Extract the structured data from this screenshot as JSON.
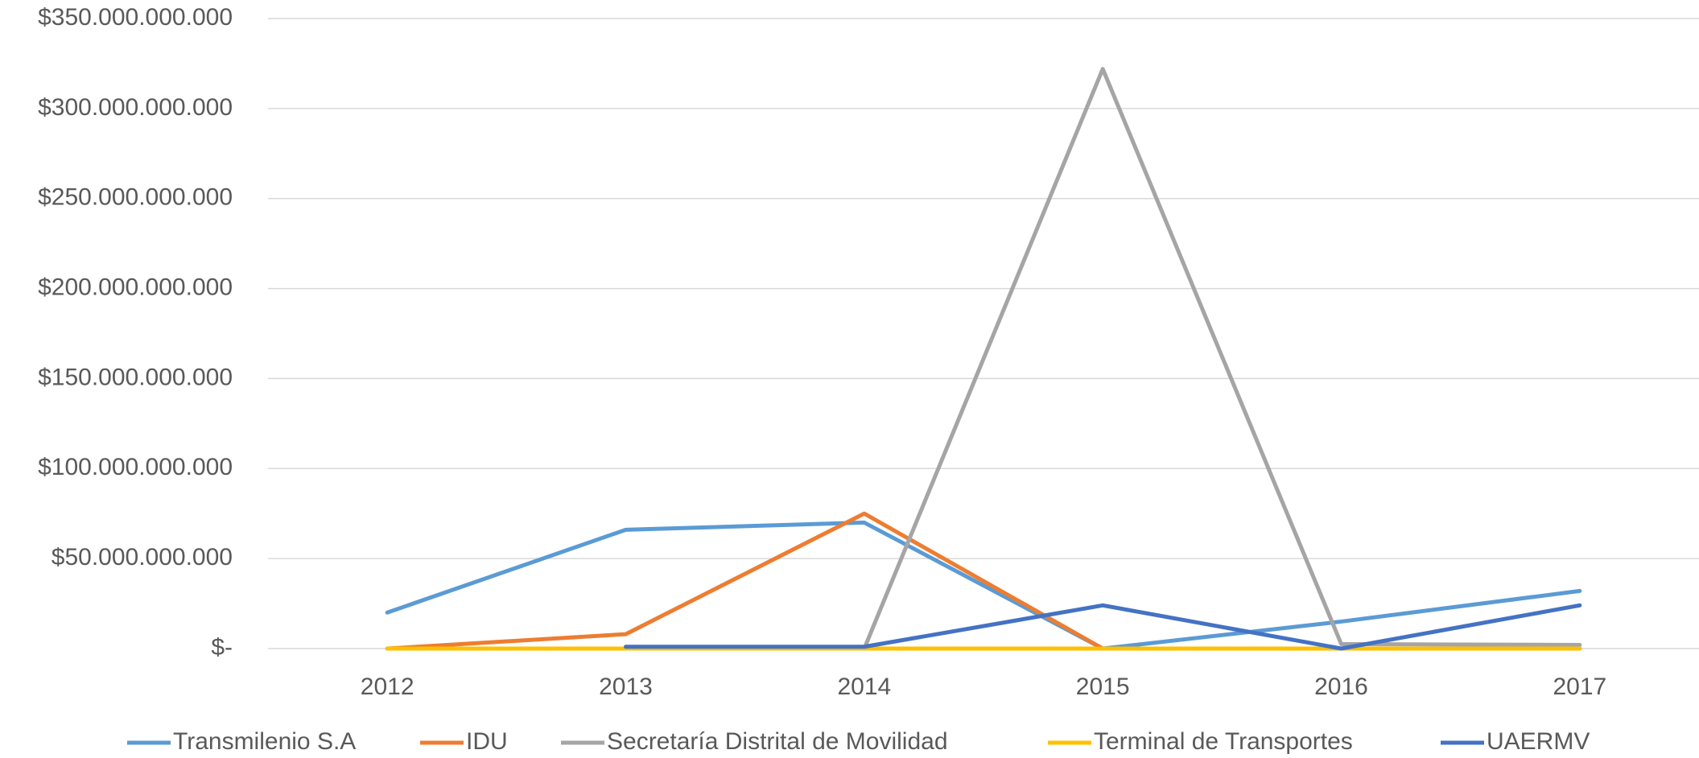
{
  "chart_data": {
    "type": "line",
    "categories": [
      "2012",
      "2013",
      "2014",
      "2015",
      "2016",
      "2017"
    ],
    "series": [
      {
        "name": "Transmilenio S.A",
        "color": "#5b9bd5",
        "values": [
          20000000000,
          66000000000,
          70000000000,
          0,
          15000000000,
          32000000000
        ]
      },
      {
        "name": "IDU",
        "color": "#ed7d31",
        "values": [
          0,
          8000000000,
          75000000000,
          0,
          0,
          0
        ]
      },
      {
        "name": "Secretaría Distrital de Movilidad",
        "color": "#a5a5a5",
        "values": [
          null,
          null,
          0,
          322000000000,
          2500000000,
          2000000000
        ]
      },
      {
        "name": "Terminal de Transportes",
        "color": "#ffc000",
        "values": [
          0,
          0,
          0,
          0,
          0,
          0
        ]
      },
      {
        "name": "UAERMV",
        "color": "#4472c4",
        "values": [
          null,
          1000000000,
          1000000000,
          24000000000,
          0,
          24000000000
        ]
      }
    ],
    "ylim": [
      0,
      350000000000
    ],
    "yticks": [
      {
        "value": 0,
        "label": "$-"
      },
      {
        "value": 50000000000,
        "label": "$50.000.000.000"
      },
      {
        "value": 100000000000,
        "label": "$100.000.000.000"
      },
      {
        "value": 150000000000,
        "label": "$150.000.000.000"
      },
      {
        "value": 200000000000,
        "label": "$200.000.000.000"
      },
      {
        "value": 250000000000,
        "label": "$250.000.000.000"
      },
      {
        "value": 300000000000,
        "label": "$300.000.000.000"
      },
      {
        "value": 350000000000,
        "label": "$350.000.000.000"
      }
    ],
    "grid": true,
    "legend": "bottom"
  }
}
